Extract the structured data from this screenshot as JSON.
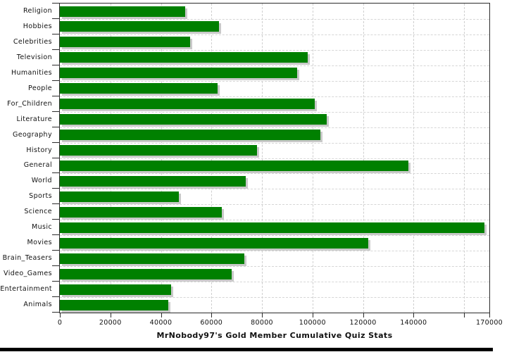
{
  "chart_data": {
    "type": "bar",
    "orientation": "horizontal",
    "title": "MrNobody97's Gold Member Cumulative Quiz Stats",
    "categories": [
      "Religion",
      "Hobbies",
      "Celebrities",
      "Television",
      "Humanities",
      "People",
      "For_Children",
      "Literature",
      "Geography",
      "History",
      "General",
      "World",
      "Sports",
      "Science",
      "Music",
      "Movies",
      "Brain_Teasers",
      "Video_Games",
      "Entertainment",
      "Animals"
    ],
    "values": [
      49500,
      63000,
      51500,
      98000,
      94000,
      62500,
      101000,
      105500,
      103000,
      78000,
      138000,
      73500,
      47000,
      64000,
      168000,
      122000,
      73000,
      68000,
      44000,
      43000
    ],
    "xlim": [
      0,
      170000
    ],
    "x_ticks": [
      {
        "value": 0,
        "label": "0"
      },
      {
        "value": 20000,
        "label": "20000"
      },
      {
        "value": 40000,
        "label": "40000"
      },
      {
        "value": 60000,
        "label": "60000"
      },
      {
        "value": 80000,
        "label": "80000"
      },
      {
        "value": 100000,
        "label": "100000"
      },
      {
        "value": 120000,
        "label": "120000"
      },
      {
        "value": 140000,
        "label": "140000"
      },
      {
        "value": 160000,
        "label": ""
      },
      {
        "value": 170000,
        "label": "170000"
      }
    ],
    "grid": true,
    "legend": false,
    "bar_color": "#008000",
    "bar_shadow_color": "#c9c9c9",
    "grid_color": "#cfcfcf",
    "axis_color": "#2b2b2b",
    "background_color": "#ffffff"
  }
}
